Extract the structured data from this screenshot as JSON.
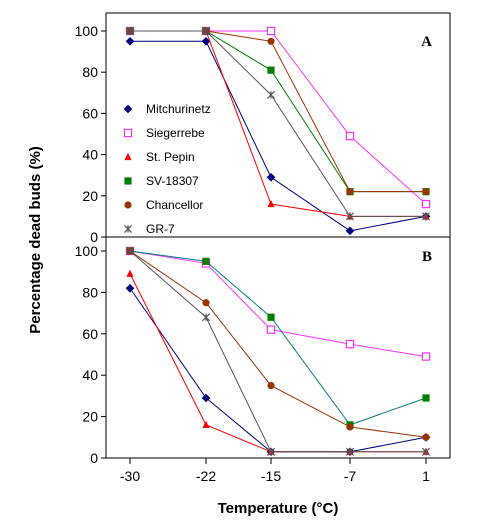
{
  "chart_data": {
    "type": "line",
    "xlabel": "Temperature (°C)",
    "ylabel": "Percentage dead buds (%)",
    "x": [
      -30,
      -22,
      -15,
      -7,
      1
    ],
    "x_tick_labels": [
      "-30",
      "-22",
      "-15",
      "-7",
      "1"
    ],
    "ylim": [
      0,
      100
    ],
    "y_ticks": [
      0,
      20,
      40,
      60,
      80,
      100
    ],
    "y_tick_labels": [
      "0",
      "20",
      "40",
      "60",
      "80",
      "100"
    ],
    "legend_placement": "left, inside panel A",
    "legend": [
      {
        "name": "Mitchurinetz",
        "color": "#00007F",
        "marker": "diamond"
      },
      {
        "name": "Siegerrebe",
        "color": "#FF33FF",
        "marker": "open-square"
      },
      {
        "name": "St. Pepin",
        "color": "#FF0000",
        "marker": "triangle"
      },
      {
        "name": "SV-18307",
        "color": "#008000",
        "marker": "square"
      },
      {
        "name": "Chancellor",
        "color": "#993300",
        "marker": "circle"
      },
      {
        "name": "GR-7",
        "color": "#555555",
        "marker": "asterisk"
      }
    ],
    "panels": [
      {
        "label": "A",
        "series": [
          {
            "name": "Mitchurinetz",
            "line_color": "#00007F",
            "values": [
              95,
              95,
              29,
              3,
              10
            ]
          },
          {
            "name": "Siegerrebe",
            "line_color": "#FF33FF",
            "values": [
              100,
              100,
              100,
              49,
              16
            ]
          },
          {
            "name": "St. Pepin",
            "line_color": "#FF0000",
            "values": [
              100,
              100,
              16,
              10,
              10
            ]
          },
          {
            "name": "SV-18307",
            "line_color": "#008000",
            "values": [
              100,
              100,
              81,
              22,
              22
            ]
          },
          {
            "name": "Chancellor",
            "line_color": "#993300",
            "values": [
              100,
              100,
              95,
              22,
              22
            ]
          },
          {
            "name": "GR-7",
            "line_color": "#555555",
            "values": [
              100,
              100,
              69,
              10,
              10
            ]
          }
        ]
      },
      {
        "label": "B",
        "series": [
          {
            "name": "Mitchurinetz",
            "line_color": "#00007F",
            "values": [
              82,
              29,
              3,
              3,
              10
            ]
          },
          {
            "name": "Siegerrebe",
            "line_color": "#FF33FF",
            "values": [
              100,
              94,
              62,
              55,
              49
            ]
          },
          {
            "name": "St. Pepin",
            "line_color": "#FF0000",
            "values": [
              89,
              16,
              3,
              3,
              3
            ]
          },
          {
            "name": "SV-18307",
            "line_color": "#008080",
            "values": [
              100,
              95,
              68,
              16,
              29
            ]
          },
          {
            "name": "Chancellor",
            "line_color": "#993300",
            "values": [
              100,
              75,
              35,
              15,
              10
            ]
          },
          {
            "name": "GR-7",
            "line_color": "#555555",
            "values": [
              100,
              68,
              3,
              3,
              3
            ]
          }
        ]
      }
    ]
  }
}
